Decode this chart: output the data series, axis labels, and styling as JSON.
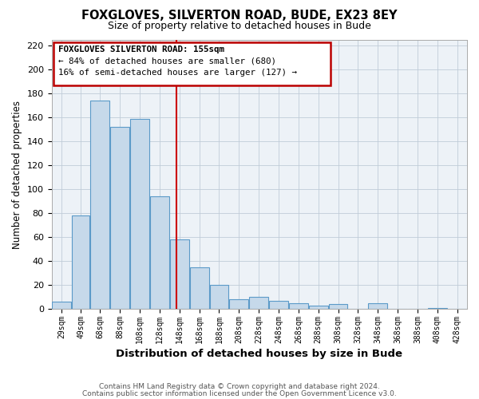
{
  "title": "FOXGLOVES, SILVERTON ROAD, BUDE, EX23 8EY",
  "subtitle": "Size of property relative to detached houses in Bude",
  "xlabel": "Distribution of detached houses by size in Bude",
  "ylabel": "Number of detached properties",
  "bar_left_edges": [
    29,
    49,
    68,
    88,
    108,
    128,
    148,
    168,
    188,
    208,
    228,
    248,
    268,
    288,
    308,
    328,
    348,
    368,
    388,
    408,
    428
  ],
  "bar_widths": [
    20,
    19,
    20,
    20,
    20,
    20,
    20,
    20,
    20,
    20,
    20,
    20,
    20,
    20,
    20,
    20,
    20,
    20,
    20,
    20,
    20
  ],
  "bar_heights": [
    6,
    78,
    174,
    152,
    159,
    94,
    58,
    35,
    20,
    8,
    10,
    7,
    5,
    3,
    4,
    0,
    5,
    0,
    0,
    1,
    0
  ],
  "bar_color": "#c6d9ea",
  "bar_edge_color": "#5b9ac8",
  "tick_labels": [
    "29sqm",
    "49sqm",
    "68sqm",
    "88sqm",
    "108sqm",
    "128sqm",
    "148sqm",
    "168sqm",
    "188sqm",
    "208sqm",
    "228sqm",
    "248sqm",
    "268sqm",
    "288sqm",
    "308sqm",
    "328sqm",
    "348sqm",
    "368sqm",
    "388sqm",
    "408sqm",
    "428sqm"
  ],
  "ylim": [
    0,
    225
  ],
  "yticks": [
    0,
    20,
    40,
    60,
    80,
    100,
    120,
    140,
    160,
    180,
    200,
    220
  ],
  "vline_x": 155,
  "vline_color": "#cc0000",
  "annotation_line1": "FOXGLOVES SILVERTON ROAD: 155sqm",
  "annotation_line2": "← 84% of detached houses are smaller (680)",
  "annotation_line3": "16% of semi-detached houses are larger (127) →",
  "bg_color": "#edf2f7",
  "grid_color": "#c0ccd8",
  "footer_line1": "Contains HM Land Registry data © Crown copyright and database right 2024.",
  "footer_line2": "Contains public sector information licensed under the Open Government Licence v3.0."
}
